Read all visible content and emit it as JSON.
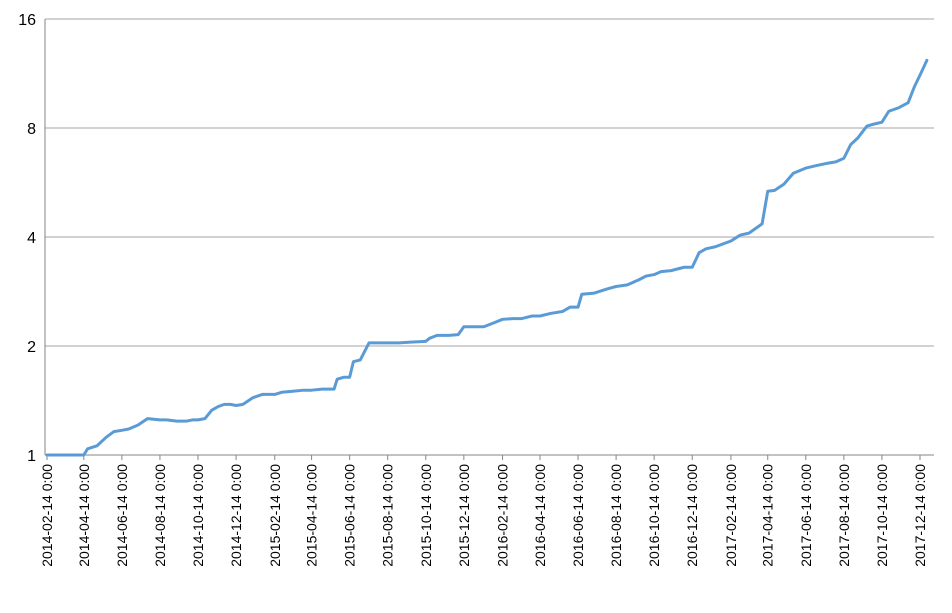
{
  "chart_data": {
    "type": "line",
    "title": "",
    "xlabel": "",
    "ylabel": "",
    "y_scale": "log2",
    "ylim": [
      1,
      16
    ],
    "y_ticks": [
      1,
      2,
      4,
      8,
      16
    ],
    "y_tick_labels": [
      "1",
      "2",
      "4",
      "8",
      "16"
    ],
    "x_tick_labels": [
      "2014-02-14 0:00",
      "2014-04-14 0:00",
      "2014-06-14 0:00",
      "2014-08-14 0:00",
      "2014-10-14 0:00",
      "2014-12-14 0:00",
      "2015-02-14 0:00",
      "2015-04-14 0:00",
      "2015-06-14 0:00",
      "2015-08-14 0:00",
      "2015-10-14 0:00",
      "2015-12-14 0:00",
      "2016-02-14 0:00",
      "2016-04-14 0:00",
      "2016-06-14 0:00",
      "2016-08-14 0:00",
      "2016-10-14 0:00",
      "2016-12-14 0:00",
      "2017-02-14 0:00",
      "2017-04-14 0:00",
      "2017-06-14 0:00",
      "2017-08-14 0:00",
      "2017-10-14 0:00",
      "2017-12-14 0:00"
    ],
    "grid": "horizontal",
    "legend": "none",
    "series_color": "#5B9BD5",
    "gridline_color": "#A6A6A6",
    "axis_color": "#868686",
    "series": [
      {
        "x": [
          "2014-02-14",
          "2014-03-05",
          "2014-03-20",
          "2014-04-14",
          "2014-04-20",
          "2014-05-05",
          "2014-05-20",
          "2014-06-01",
          "2014-06-14",
          "2014-06-25",
          "2014-07-10",
          "2014-07-25",
          "2014-08-14",
          "2014-08-25",
          "2014-09-10",
          "2014-09-25",
          "2014-10-05",
          "2014-10-14",
          "2014-10-25",
          "2014-11-05",
          "2014-11-15",
          "2014-11-25",
          "2014-12-05",
          "2014-12-14",
          "2014-12-25",
          "2015-01-10",
          "2015-01-25",
          "2015-02-14",
          "2015-02-25",
          "2015-03-15",
          "2015-04-01",
          "2015-04-14",
          "2015-05-01",
          "2015-05-20",
          "2015-05-25",
          "2015-06-05",
          "2015-06-14",
          "2015-06-20",
          "2015-07-01",
          "2015-07-15",
          "2015-08-14",
          "2015-09-01",
          "2015-09-20",
          "2015-10-14",
          "2015-10-20",
          "2015-11-01",
          "2015-11-20",
          "2015-12-05",
          "2015-12-14",
          "2015-12-25",
          "2016-01-15",
          "2016-02-01",
          "2016-02-14",
          "2016-03-01",
          "2016-03-15",
          "2016-04-01",
          "2016-04-14",
          "2016-05-01",
          "2016-05-20",
          "2016-06-01",
          "2016-06-14",
          "2016-06-20",
          "2016-07-10",
          "2016-08-01",
          "2016-08-14",
          "2016-09-01",
          "2016-09-20",
          "2016-10-01",
          "2016-10-14",
          "2016-10-25",
          "2016-11-10",
          "2016-12-01",
          "2016-12-14",
          "2016-12-25",
          "2017-01-05",
          "2017-01-20",
          "2017-02-14",
          "2017-03-01",
          "2017-03-15",
          "2017-04-01",
          "2017-04-05",
          "2017-04-14",
          "2017-04-25",
          "2017-05-10",
          "2017-05-25",
          "2017-06-14",
          "2017-07-01",
          "2017-07-20",
          "2017-08-01",
          "2017-08-14",
          "2017-08-25",
          "2017-09-05",
          "2017-09-20",
          "2017-10-01",
          "2017-10-14",
          "2017-10-25",
          "2017-11-10",
          "2017-11-25",
          "2017-12-05",
          "2017-12-14",
          "2017-12-25"
        ],
        "y": [
          1.0,
          1.0,
          1.0,
          1.0,
          1.04,
          1.06,
          1.12,
          1.16,
          1.17,
          1.18,
          1.21,
          1.26,
          1.25,
          1.25,
          1.24,
          1.24,
          1.25,
          1.25,
          1.26,
          1.33,
          1.36,
          1.38,
          1.38,
          1.37,
          1.38,
          1.44,
          1.47,
          1.47,
          1.49,
          1.5,
          1.51,
          1.51,
          1.52,
          1.52,
          1.62,
          1.64,
          1.64,
          1.81,
          1.83,
          2.04,
          2.04,
          2.04,
          2.05,
          2.06,
          2.1,
          2.14,
          2.14,
          2.15,
          2.26,
          2.26,
          2.26,
          2.32,
          2.37,
          2.38,
          2.38,
          2.42,
          2.42,
          2.46,
          2.49,
          2.56,
          2.56,
          2.78,
          2.8,
          2.88,
          2.92,
          2.95,
          3.05,
          3.12,
          3.15,
          3.21,
          3.23,
          3.3,
          3.3,
          3.62,
          3.71,
          3.76,
          3.9,
          4.05,
          4.1,
          4.3,
          4.35,
          5.35,
          5.38,
          5.6,
          6.0,
          6.2,
          6.3,
          6.4,
          6.45,
          6.6,
          7.2,
          7.5,
          8.1,
          8.2,
          8.3,
          8.9,
          9.1,
          9.4,
          10.4,
          11.2,
          12.3
        ]
      }
    ]
  }
}
